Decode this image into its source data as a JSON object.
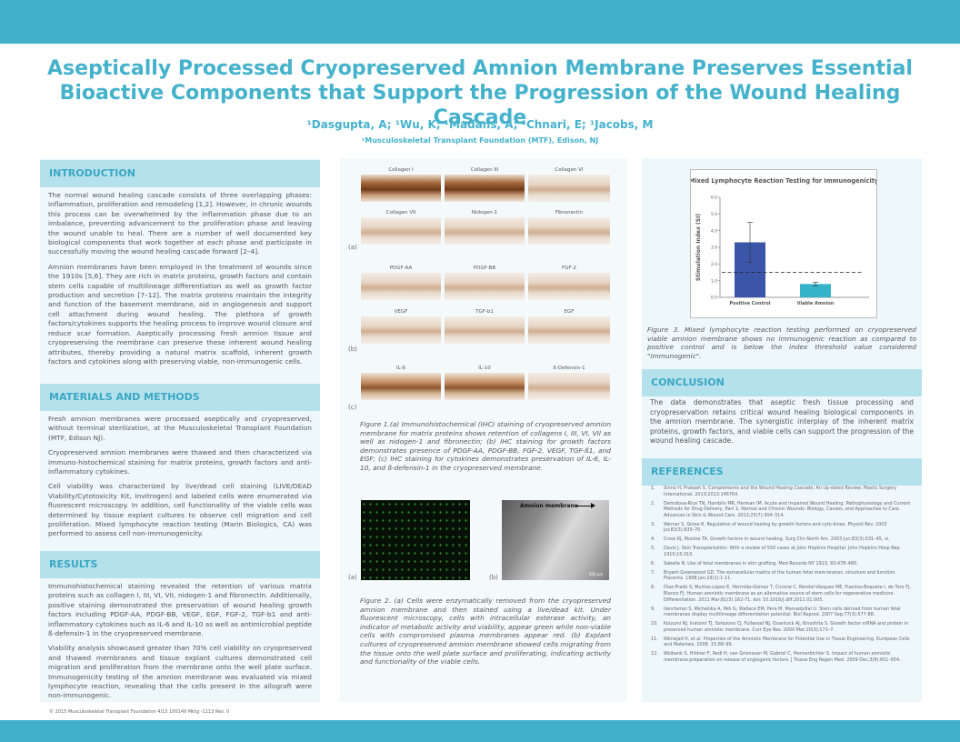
{
  "header": {
    "title_line1": "Aseptically Processed Cryopreserved Amnion Membrane Preserves Essential",
    "title_line2": "Bioactive Components that Support the Progression of the Wound Healing Cascade",
    "authors": "¹Dasgupta, A; ¹Wu, K; ¹Madans, A; ¹Chnari, E; ¹Jacobs, M",
    "affiliation": "¹Musculoskeletal Transplant Foundation (MTF), Edison, NJ"
  },
  "introduction": {
    "heading": "INTRODUCTION",
    "p1": "The normal wound healing cascade consists of three overlapping phases: inflammation, proliferation and remodeling [1,2]. However, in chronic wounds this process can be overwhelmed by the inflammation phase due to an imbalance, preventing advancement to the proliferation phase and leaving the wound unable to heal. There are a number of well documented key biological components that work together at each phase and participate in successfully moving the wound healing cascade forward [2–4].",
    "p2": "Amnion membranes have been employed in the treatment of wounds since the 1910s [5,6]. They are rich in matrix proteins, growth factors and contain stem cells capable of multilineage differentiation as well as growth factor production and secretion [7–12]. The matrix proteins maintain the integrity and function of the basement membrane, aid in angiogenesis and support cell attachment during wound healing. The plethora of growth factors/cytokines supports the healing process to improve wound closure and reduce scar formation. Aseptically processing fresh amnion tissue and cryopreserving the membrane can preserve these inherent wound healing attributes, thereby providing a natural matrix scaffold, inherent growth factors and cytokines along with preserving viable, non-immunogenic cells."
  },
  "methods": {
    "heading": "MATERIALS AND METHODS",
    "p1": "Fresh amnion membranes were processed aseptically and cryopreserved, without terminal sterilization, at the Musculoskeletal Transplant Foundation (MTF, Edison NJ).",
    "p2": "Cryopreserved amnion membranes were thawed and then characterized via immuno-histochemical staining for matrix proteins, growth factors and anti-inflammatory cytokines.",
    "p3": "Cell viability was characterized by live/dead cell staining (LIVE/DEAD Viability/Cytotoxicity Kit, Invitrogen) and labeled cells were enumerated via fluorescent microscopy. In addition, cell functionality of the viable cells was determined by tissue explant cultures to observe cell migration and cell proliferation. Mixed lymphocyte reaction testing (Marin Biologics, CA) was performed to assess cell non-immunogenicity."
  },
  "results": {
    "heading": "RESULTS",
    "p1": "Immunohistochemical staining revealed the retention of various matrix proteins such as collagen I, III, VI, VII, nidogen-1 and fibronectin. Additionally, positive staining demonstrated the preservation of wound healing growth factors including PDGF-AA, PDGF-BB, VEGF, EGF, FGF-2, TGF-b1 and anti-inflammatory cytokines such as IL-6 and IL-10 as well as antimicrobial peptide ß-defensin-1 in the cryopreserved membrane.",
    "p2": "Viability analysis showcased greater than 70% cell viability on cryopreserved and thawed membranes and tissue explant cultures demonstrated cell migration and proliferation from the membrane onto the well plate surface. Immunogenicity testing of the amnion membrane was evaluated via mixed lymphocyte reaction, revealing that the cells present in the allograft were non-immunogenic."
  },
  "figure1": {
    "panel_a": "(a)",
    "panel_b": "(b)",
    "panel_c": "(c)",
    "row1": [
      "Collagen I",
      "Collagen III",
      "Collagen VI"
    ],
    "row2": [
      "Collagen VII",
      "Nidogen-1",
      "Fibronectin"
    ],
    "row3": [
      "PDGF-AA",
      "PDGF-BB",
      "FGF-2"
    ],
    "row4": [
      "VEGF",
      "TGF-b1",
      "EGF"
    ],
    "row5": [
      "IL-6",
      "IL-10",
      "ß-Defensin-1"
    ],
    "caption": "Figure 1.(a) Immunohistochemical (IHC) staining of cryopreserved amnion membrane for matrix proteins shows retention of collagens I, III, VI, VII as well as nidogen-1 and fibronectin; (b) IHC staining for growth factors demonstrates presence of PDGF-AA, PDGF-BB, FGF-2, VEGF, TGF-ß1, and EGF; (c) IHC staining for cytokines demonstrates preservation of IL-6, IL-10, and ß-defensin-1 in the cryopreserved membrane."
  },
  "figure2": {
    "panel_a": "(a)",
    "panel_b": "(b)",
    "arrow_label": "Amnion membrane",
    "scale_label": "500 µm",
    "caption": "Figure 2. (a) Cells were enzymatically removed from the cryopreserved amnion membrane and then stained using a live/dead kit. Under fluorescent microscopy, cells with intracellular esterase activity, an indicator of metabolic activity and viability, appear green while non-viable cells with compromised plasma membranes appear red. (b) Explant cultures of cryopreserved amnion membrane showed cells migrating from the tissue onto the well plate surface and proliferating, indicating activity and functionality of the viable cells."
  },
  "chart_data": {
    "type": "bar",
    "title": "Mixed Lymphocyte Reaction Testing for Immunogenicity",
    "ylabel": "Stimulation Index (SI)",
    "xlabel": "",
    "categories": [
      "Positive Control",
      "Viable Amnion"
    ],
    "values": [
      3.3,
      0.8
    ],
    "error": [
      1.2,
      0.1
    ],
    "threshold": 1.5,
    "ylim": [
      0,
      6
    ],
    "yticks": [
      "0.0",
      "1.0",
      "2.0",
      "3.0",
      "4.0",
      "5.0",
      "6.0"
    ],
    "colors": [
      "#3b55a8",
      "#36b3c9"
    ]
  },
  "figure3": {
    "caption": "Figure 3. Mixed lymphocyte reaction testing performed on cryopreserved viable amnion membrane shows no immunogenic reaction as compared to positive control and is below the index threshold value considered \"immunogenic\"."
  },
  "conclusion": {
    "heading": "CONCLUSION",
    "text": "The data demonstrates that aseptic fresh tissue processing and cryopreservation retains critical wound healing biological components in the amnion membrane. The synergistic interplay of the inherent matrix proteins, growth factors, and viable cells can support the progression of the wound healing cascade."
  },
  "references": {
    "heading": "REFERENCES",
    "items": [
      "Sinno H, Prakash S. Complements and the Wound Healing Cascade: An Up-dated Review. Plastic Surgery International. 2013;2013:146764.",
      "Demidova-Rice TN, Hamblin MR, Herman IM. Acute and Impaired Wound Healing: Pathophysiology and Current Methods for Drug Delivery, Part 1: Normal and Chronic Wounds: Biology, Causes, and Approaches to Care. Advances in Skin & Wound Care. 2012;25(7):304–314.",
      "Werner S, Grose R. Regulation of wound healing by growth factors and cyto-kines. Physiol Rev. 2003 Jul;83(3):835–70.",
      "Cross KJ, Mustoe TA. Growth factors in wound healing. Surg Clin North Am. 2003 Jun;83(3):531–45, vi.",
      "Davis J. Skin Transplantation: With a review of 550 cases at John Hopkins Hospital. John Hopkins Hosp Rep. 1910;15:310.",
      "Sabella N. Use of fetal membranes in skin grafting. Med Records NY 1913; 83:478–480.",
      "Bryant-Greenwood GD. The extracellular matrix of the human fetal mem-branes: structure and function. Placenta. 1998 Jan;19(1):1-11.",
      "Díaz-Prado S, Muiños-López E, Hermida-Gómez T, Cicione C, Rendal-Vázquez ME, Fuentes-Boquete I, de Toro FJ, Blanco FJ. Human amniotic membrane as an alternative source of stem cells for regenerative medicine. Differentiation. 2011 Mar;81(3):162-71. doi: 10.1016/j.diff.2011.01.005.",
      "Ilancheran S, Michalska A, Peh G, Wallace EM, Pera M, Manuelpillai U. Stem cells derived from human fetal membranes display multilineage differentiation potential. Biol Reprod. 2007 Sep;77(3):577-88.",
      "Koizumi NJ, Inatomi TJ, Sotozono CJ, Fullwood NJ, Quantock AJ, Kinoshita S. Growth factor mRNA and protein in preserved human amniotic membrane. Curr Eye Res. 2000 Mar;20(3):173–7.",
      "Niknejad H, et al. Properties of the Amniotic Membrane for Potential Use in Tissue Engineering. European Cells and Materials. 2008. 15:88–99.",
      "Wolbank S, Hildner F, Redl H, van Griensven M, Gabriel C, Hennerbichler S. Impact of human amniotic membrane preparation on release of angiogenic factors. J Tissue Eng Regen Med. 2009 Dec;3(8):651–654."
    ]
  },
  "footer": {
    "text": "© 2015 Musculoskeletal Transplant Foundation 4/15 100149 Mktg -1113 Rev. 0"
  }
}
